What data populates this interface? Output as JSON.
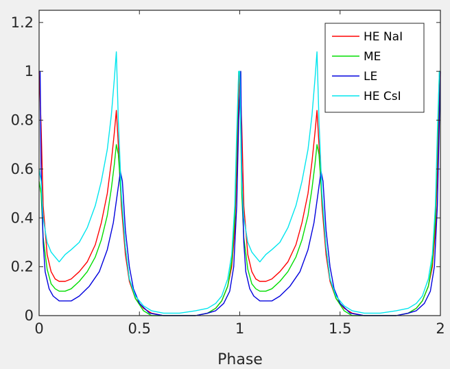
{
  "chart_data": {
    "type": "line",
    "title": "",
    "xlabel": "Phase",
    "ylabel": "",
    "xlim": [
      0,
      2
    ],
    "ylim": [
      0,
      1.25
    ],
    "xticks": [
      "0",
      "0.5",
      "1",
      "1.5",
      "2"
    ],
    "yticks": [
      "0",
      "0.2",
      "0.4",
      "0.6",
      "0.8",
      "1",
      "1.2"
    ],
    "xtick_values": [
      0,
      0.5,
      1,
      1.5,
      2
    ],
    "ytick_values": [
      0,
      0.2,
      0.4,
      0.6,
      0.8,
      1,
      1.2
    ],
    "grid": false,
    "legend_position": "top-right",
    "series": [
      {
        "name": "HE NaI",
        "color": "#ff0000",
        "x": [
          0.0,
          0.01,
          0.02,
          0.04,
          0.06,
          0.08,
          0.1,
          0.13,
          0.16,
          0.2,
          0.24,
          0.28,
          0.31,
          0.34,
          0.36,
          0.375,
          0.385,
          0.395,
          0.41,
          0.43,
          0.45,
          0.48,
          0.52,
          0.56,
          0.62,
          0.7,
          0.78,
          0.84,
          0.88,
          0.91,
          0.94,
          0.96,
          0.975,
          0.985,
          0.995,
          1.0,
          1.01,
          1.02,
          1.04,
          1.06,
          1.08,
          1.1,
          1.13,
          1.16,
          1.2,
          1.24,
          1.28,
          1.31,
          1.34,
          1.36,
          1.375,
          1.385,
          1.395,
          1.41,
          1.43,
          1.45,
          1.48,
          1.52,
          1.56,
          1.62,
          1.7,
          1.78,
          1.84,
          1.88,
          1.91,
          1.94,
          1.96,
          1.975,
          1.985,
          1.995,
          2.0
        ],
        "y": [
          1.0,
          0.78,
          0.45,
          0.25,
          0.18,
          0.15,
          0.14,
          0.14,
          0.15,
          0.18,
          0.22,
          0.29,
          0.38,
          0.5,
          0.63,
          0.75,
          0.84,
          0.7,
          0.45,
          0.25,
          0.14,
          0.07,
          0.03,
          0.01,
          0.0,
          0.0,
          0.0,
          0.01,
          0.03,
          0.06,
          0.12,
          0.2,
          0.35,
          0.6,
          0.9,
          1.0,
          0.78,
          0.45,
          0.25,
          0.18,
          0.15,
          0.14,
          0.14,
          0.15,
          0.18,
          0.22,
          0.29,
          0.38,
          0.5,
          0.63,
          0.75,
          0.84,
          0.7,
          0.45,
          0.25,
          0.14,
          0.07,
          0.03,
          0.01,
          0.0,
          0.0,
          0.0,
          0.01,
          0.03,
          0.06,
          0.12,
          0.2,
          0.35,
          0.6,
          0.9,
          1.0
        ]
      },
      {
        "name": "ME",
        "color": "#00dd00",
        "x": [
          0.0,
          0.01,
          0.02,
          0.04,
          0.06,
          0.08,
          0.1,
          0.13,
          0.16,
          0.2,
          0.24,
          0.28,
          0.31,
          0.34,
          0.36,
          0.375,
          0.385,
          0.395,
          0.41,
          0.43,
          0.45,
          0.48,
          0.52,
          0.56,
          0.62,
          0.7,
          0.78,
          0.84,
          0.88,
          0.91,
          0.94,
          0.96,
          0.975,
          0.985,
          0.995,
          1.0,
          1.01,
          1.02,
          1.04,
          1.06,
          1.08,
          1.1,
          1.13,
          1.16,
          1.2,
          1.24,
          1.28,
          1.31,
          1.34,
          1.36,
          1.375,
          1.385,
          1.395,
          1.41,
          1.43,
          1.45,
          1.48,
          1.52,
          1.56,
          1.62,
          1.7,
          1.78,
          1.84,
          1.88,
          1.91,
          1.94,
          1.96,
          1.975,
          1.985,
          1.995,
          2.0
        ],
        "y": [
          0.55,
          0.5,
          0.32,
          0.19,
          0.13,
          0.11,
          0.1,
          0.1,
          0.11,
          0.14,
          0.18,
          0.24,
          0.31,
          0.41,
          0.52,
          0.62,
          0.7,
          0.66,
          0.48,
          0.28,
          0.15,
          0.07,
          0.02,
          0.0,
          0.0,
          0.0,
          0.0,
          0.01,
          0.03,
          0.06,
          0.12,
          0.22,
          0.4,
          0.7,
          1.0,
          1.0,
          0.5,
          0.32,
          0.19,
          0.13,
          0.11,
          0.1,
          0.1,
          0.11,
          0.14,
          0.18,
          0.24,
          0.31,
          0.41,
          0.52,
          0.62,
          0.7,
          0.66,
          0.48,
          0.28,
          0.15,
          0.07,
          0.02,
          0.0,
          0.0,
          0.0,
          0.0,
          0.01,
          0.03,
          0.06,
          0.12,
          0.22,
          0.4,
          0.7,
          1.0,
          1.0
        ]
      },
      {
        "name": "LE",
        "color": "#0000dd",
        "x": [
          0.0,
          0.005,
          0.01,
          0.02,
          0.03,
          0.05,
          0.07,
          0.1,
          0.13,
          0.16,
          0.2,
          0.25,
          0.3,
          0.34,
          0.37,
          0.39,
          0.405,
          0.415,
          0.43,
          0.45,
          0.47,
          0.5,
          0.55,
          0.62,
          0.7,
          0.78,
          0.84,
          0.88,
          0.92,
          0.95,
          0.97,
          0.985,
          0.995,
          1.005,
          1.01,
          1.02,
          1.03,
          1.05,
          1.07,
          1.1,
          1.13,
          1.16,
          1.2,
          1.25,
          1.3,
          1.34,
          1.37,
          1.39,
          1.405,
          1.415,
          1.43,
          1.45,
          1.47,
          1.5,
          1.55,
          1.62,
          1.7,
          1.78,
          1.84,
          1.88,
          1.92,
          1.95,
          1.97,
          1.985,
          1.995,
          2.0
        ],
        "y": [
          1.0,
          1.0,
          0.6,
          0.3,
          0.18,
          0.11,
          0.08,
          0.06,
          0.06,
          0.06,
          0.08,
          0.12,
          0.18,
          0.27,
          0.38,
          0.5,
          0.59,
          0.55,
          0.35,
          0.2,
          0.11,
          0.05,
          0.01,
          0.0,
          0.0,
          0.0,
          0.01,
          0.02,
          0.05,
          0.1,
          0.2,
          0.45,
          0.8,
          1.0,
          0.6,
          0.3,
          0.18,
          0.11,
          0.08,
          0.06,
          0.06,
          0.06,
          0.08,
          0.12,
          0.18,
          0.27,
          0.38,
          0.5,
          0.59,
          0.55,
          0.35,
          0.2,
          0.11,
          0.05,
          0.01,
          0.0,
          0.0,
          0.0,
          0.01,
          0.02,
          0.05,
          0.1,
          0.2,
          0.45,
          0.8,
          1.0
        ]
      },
      {
        "name": "HE CsI",
        "color": "#00e5ee",
        "x": [
          0.0,
          0.01,
          0.02,
          0.04,
          0.06,
          0.08,
          0.1,
          0.13,
          0.16,
          0.2,
          0.24,
          0.28,
          0.31,
          0.34,
          0.36,
          0.375,
          0.385,
          0.395,
          0.41,
          0.43,
          0.45,
          0.48,
          0.52,
          0.56,
          0.62,
          0.7,
          0.78,
          0.84,
          0.88,
          0.91,
          0.94,
          0.96,
          0.975,
          0.985,
          0.995,
          1.0,
          1.01,
          1.02,
          1.04,
          1.06,
          1.08,
          1.1,
          1.13,
          1.16,
          1.2,
          1.24,
          1.28,
          1.31,
          1.34,
          1.36,
          1.375,
          1.385,
          1.395,
          1.41,
          1.43,
          1.45,
          1.48,
          1.52,
          1.56,
          1.62,
          1.7,
          1.78,
          1.84,
          1.88,
          1.91,
          1.94,
          1.96,
          1.975,
          1.985,
          1.995,
          2.0
        ],
        "y": [
          0.6,
          0.55,
          0.4,
          0.3,
          0.26,
          0.24,
          0.22,
          0.25,
          0.27,
          0.3,
          0.36,
          0.45,
          0.55,
          0.68,
          0.82,
          0.97,
          1.08,
          0.8,
          0.5,
          0.28,
          0.15,
          0.08,
          0.04,
          0.02,
          0.01,
          0.01,
          0.02,
          0.03,
          0.05,
          0.08,
          0.15,
          0.25,
          0.45,
          0.75,
          1.0,
          1.0,
          0.55,
          0.4,
          0.3,
          0.26,
          0.24,
          0.22,
          0.25,
          0.27,
          0.3,
          0.36,
          0.45,
          0.55,
          0.68,
          0.82,
          0.97,
          1.08,
          0.8,
          0.5,
          0.28,
          0.15,
          0.08,
          0.04,
          0.02,
          0.01,
          0.01,
          0.02,
          0.03,
          0.05,
          0.08,
          0.15,
          0.25,
          0.45,
          0.75,
          1.0,
          1.0
        ]
      }
    ]
  }
}
